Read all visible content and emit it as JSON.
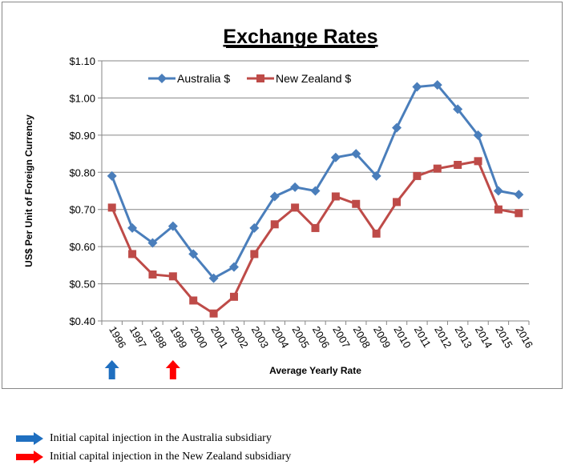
{
  "chart_data": {
    "type": "line",
    "title": "Exchange Rates",
    "xlabel": "Average Yearly Rate",
    "ylabel": "US$ Per Unit of Foreign Currency",
    "ylim": [
      0.4,
      1.1
    ],
    "yticks": [
      "$0.40",
      "$0.50",
      "$0.60",
      "$0.70",
      "$0.80",
      "$0.90",
      "$1.00",
      "$1.10"
    ],
    "ytick_values": [
      0.4,
      0.5,
      0.6,
      0.7,
      0.8,
      0.9,
      1.0,
      1.1
    ],
    "grid": true,
    "legend_position": "top-left",
    "categories": [
      "1996",
      "1997",
      "1998",
      "1999",
      "2000",
      "2001",
      "2002",
      "2003",
      "2004",
      "2005",
      "2006",
      "2007",
      "2008",
      "2009",
      "2010",
      "2011",
      "2012",
      "2013",
      "2014",
      "2015",
      "2016"
    ],
    "series": [
      {
        "name": "Australia $",
        "color": "#4a7ebb",
        "marker": "diamond",
        "values": [
          0.79,
          0.65,
          0.61,
          0.655,
          0.58,
          0.515,
          0.545,
          0.65,
          0.735,
          0.76,
          0.75,
          0.84,
          0.85,
          0.79,
          0.92,
          1.03,
          1.035,
          0.97,
          0.9,
          0.75,
          0.74
        ]
      },
      {
        "name": "New Zealand $",
        "color": "#be4b48",
        "marker": "square",
        "values": [
          0.705,
          0.58,
          0.525,
          0.52,
          0.455,
          0.42,
          0.465,
          0.58,
          0.66,
          0.705,
          0.65,
          0.735,
          0.715,
          0.635,
          0.72,
          0.79,
          0.81,
          0.82,
          0.83,
          0.7,
          0.69
        ]
      }
    ],
    "annotations": [
      {
        "category": "1996",
        "color": "#1f6fc0",
        "text": "Initial capital injection in the Australia subsidiary"
      },
      {
        "category": "1999",
        "color": "#ff0000",
        "text": "Initial capital injection in the New Zealand subsidiary"
      }
    ]
  }
}
